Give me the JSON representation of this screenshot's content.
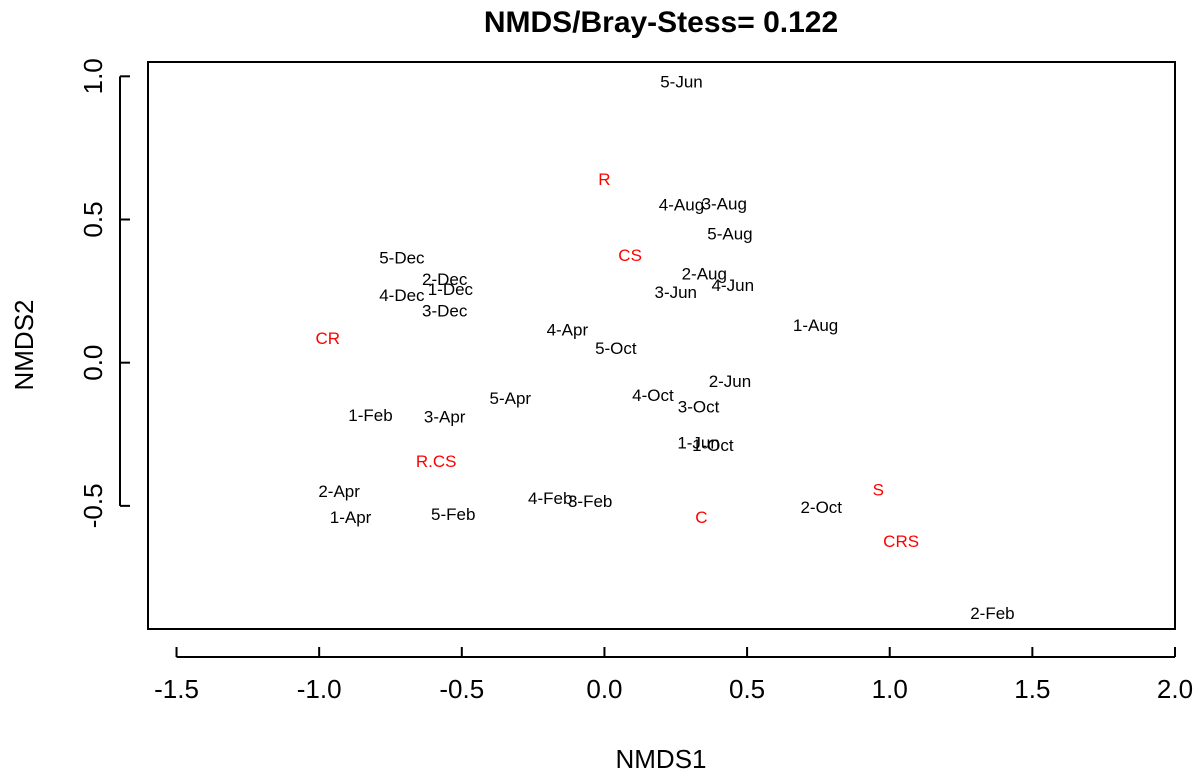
{
  "chart_data": {
    "type": "scatter",
    "title": "NMDS/Bray-Stess= 0.122",
    "xlabel": "NMDS1",
    "ylabel": "NMDS2",
    "xlim": [
      -1.6,
      2.0
    ],
    "ylim": [
      -0.93,
      1.05
    ],
    "x_ticks": [
      {
        "value": -1.5,
        "label": "-1.5"
      },
      {
        "value": -1.0,
        "label": "-1.0"
      },
      {
        "value": -0.5,
        "label": "-0.5"
      },
      {
        "value": 0.0,
        "label": "0.0"
      },
      {
        "value": 0.5,
        "label": "0.5"
      },
      {
        "value": 1.0,
        "label": "1.0"
      },
      {
        "value": 1.5,
        "label": "1.5"
      },
      {
        "value": 2.0,
        "label": "2.0"
      }
    ],
    "y_ticks": [
      {
        "value": -0.5,
        "label": "-0.5"
      },
      {
        "value": 0.0,
        "label": "0.0"
      },
      {
        "value": 0.5,
        "label": "0.5"
      },
      {
        "value": 1.0,
        "label": "1.0"
      }
    ],
    "grid": false,
    "series": [
      {
        "color": "#000000",
        "points": [
          {
            "label": "5-Jun",
            "x": 0.27,
            "y": 0.98
          },
          {
            "label": "4-Aug",
            "x": 0.27,
            "y": 0.55
          },
          {
            "label": "3-Aug",
            "x": 0.42,
            "y": 0.555
          },
          {
            "label": "5-Aug",
            "x": 0.44,
            "y": 0.45
          },
          {
            "label": "5-Dec",
            "x": -0.71,
            "y": 0.365
          },
          {
            "label": "2-Dec",
            "x": -0.56,
            "y": 0.29
          },
          {
            "label": "1-Dec",
            "x": -0.54,
            "y": 0.255
          },
          {
            "label": "4-Dec",
            "x": -0.71,
            "y": 0.235
          },
          {
            "label": "3-Dec",
            "x": -0.56,
            "y": 0.18
          },
          {
            "label": "2-Aug",
            "x": 0.35,
            "y": 0.31
          },
          {
            "label": "3-Jun",
            "x": 0.25,
            "y": 0.245
          },
          {
            "label": "4-Jun",
            "x": 0.45,
            "y": 0.27
          },
          {
            "label": "1-Aug",
            "x": 0.74,
            "y": 0.13
          },
          {
            "label": "4-Apr",
            "x": -0.13,
            "y": 0.115
          },
          {
            "label": "5-Oct",
            "x": 0.04,
            "y": 0.05
          },
          {
            "label": "2-Jun",
            "x": 0.44,
            "y": -0.065
          },
          {
            "label": "4-Oct",
            "x": 0.17,
            "y": -0.115
          },
          {
            "label": "5-Apr",
            "x": -0.33,
            "y": -0.125
          },
          {
            "label": "3-Oct",
            "x": 0.33,
            "y": -0.155
          },
          {
            "label": "1-Feb",
            "x": -0.82,
            "y": -0.185
          },
          {
            "label": "3-Apr",
            "x": -0.56,
            "y": -0.19
          },
          {
            "label": "1-Jun",
            "x": 0.33,
            "y": -0.28
          },
          {
            "label": "1-Oct",
            "x": 0.38,
            "y": -0.29
          },
          {
            "label": "2-Apr",
            "x": -0.93,
            "y": -0.45
          },
          {
            "label": "4-Feb",
            "x": -0.19,
            "y": -0.475
          },
          {
            "label": "3-Feb",
            "x": -0.05,
            "y": -0.485
          },
          {
            "label": "5-Feb",
            "x": -0.53,
            "y": -0.53
          },
          {
            "label": "1-Apr",
            "x": -0.89,
            "y": -0.54
          },
          {
            "label": "2-Oct",
            "x": 0.76,
            "y": -0.505
          },
          {
            "label": "2-Feb",
            "x": 1.36,
            "y": -0.875
          }
        ]
      },
      {
        "color": "#ff0000",
        "points": [
          {
            "label": "R",
            "x": 0.0,
            "y": 0.64
          },
          {
            "label": "CS",
            "x": 0.09,
            "y": 0.375
          },
          {
            "label": "CR",
            "x": -0.97,
            "y": 0.085
          },
          {
            "label": "R.CS",
            "x": -0.59,
            "y": -0.345
          },
          {
            "label": "S",
            "x": 0.96,
            "y": -0.445
          },
          {
            "label": "C",
            "x": 0.34,
            "y": -0.54
          },
          {
            "label": "CRS",
            "x": 1.04,
            "y": -0.625
          }
        ]
      }
    ]
  }
}
